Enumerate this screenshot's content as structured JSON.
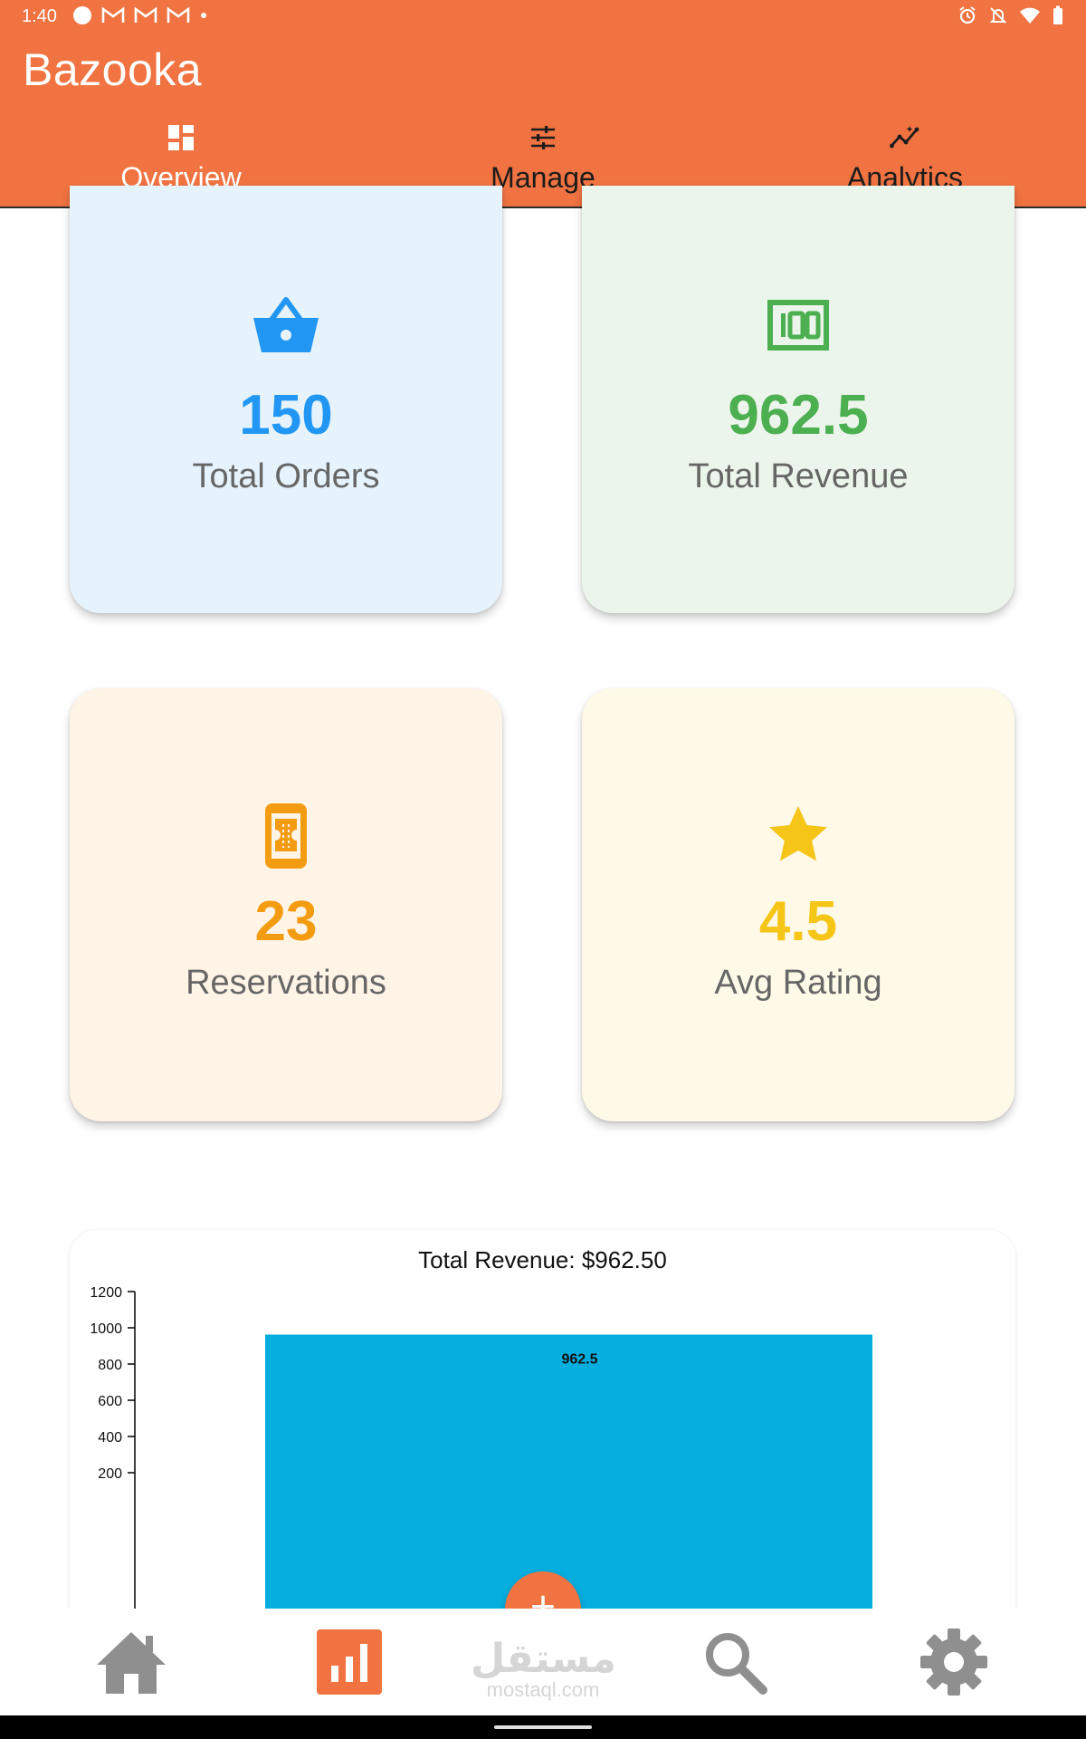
{
  "status_bar": {
    "time": "1:40",
    "left_icons": [
      "circle-icon",
      "gmail-icon",
      "gmail-icon",
      "gmail-icon",
      "dot-icon"
    ],
    "right_icons": [
      "alarm-icon",
      "mute-icon",
      "wifi-icon",
      "battery-icon"
    ]
  },
  "app": {
    "title": "Bazooka",
    "accent_color": "#F07341"
  },
  "tabs": [
    {
      "label": "Overview",
      "icon": "dashboard-icon",
      "active": true
    },
    {
      "label": "Manage",
      "icon": "tune-icon",
      "active": false
    },
    {
      "label": "Analytics",
      "icon": "insights-icon",
      "active": false
    }
  ],
  "stats": {
    "orders": {
      "value": "150",
      "label": "Total Orders",
      "icon": "basket-icon",
      "color": "#2196F3"
    },
    "revenue": {
      "value": "962.5",
      "label": "Total Revenue",
      "icon": "money-icon",
      "color": "#4CAF50"
    },
    "reservations": {
      "value": "23",
      "label": "Reservations",
      "icon": "ticket-icon",
      "color": "#F39C12"
    },
    "rating": {
      "value": "4.5",
      "label": "Avg Rating",
      "icon": "star-icon",
      "color": "#F5C518"
    }
  },
  "chart_data": {
    "type": "bar",
    "title": "Total Revenue: $962.50",
    "categories": [
      ""
    ],
    "values": [
      962.5
    ],
    "data_labels": [
      "962.5"
    ],
    "ylim": [
      0,
      1200
    ],
    "yticks": [
      "200",
      "400",
      "600",
      "800",
      "1000",
      "1200"
    ],
    "bar_color": "#06AEDF"
  },
  "fab": {
    "icon": "plus-icon",
    "symbol": "+"
  },
  "bottom_nav": {
    "items": [
      {
        "name": "home",
        "icon": "home-icon",
        "active": false
      },
      {
        "name": "dashboard",
        "icon": "bar-chart-icon",
        "active": true
      },
      {
        "name": "search",
        "icon": "search-icon",
        "active": false
      },
      {
        "name": "settings",
        "icon": "gear-icon",
        "active": false
      }
    ]
  },
  "watermark": {
    "arabic": "مستقل",
    "latin": "mostaql.com"
  }
}
